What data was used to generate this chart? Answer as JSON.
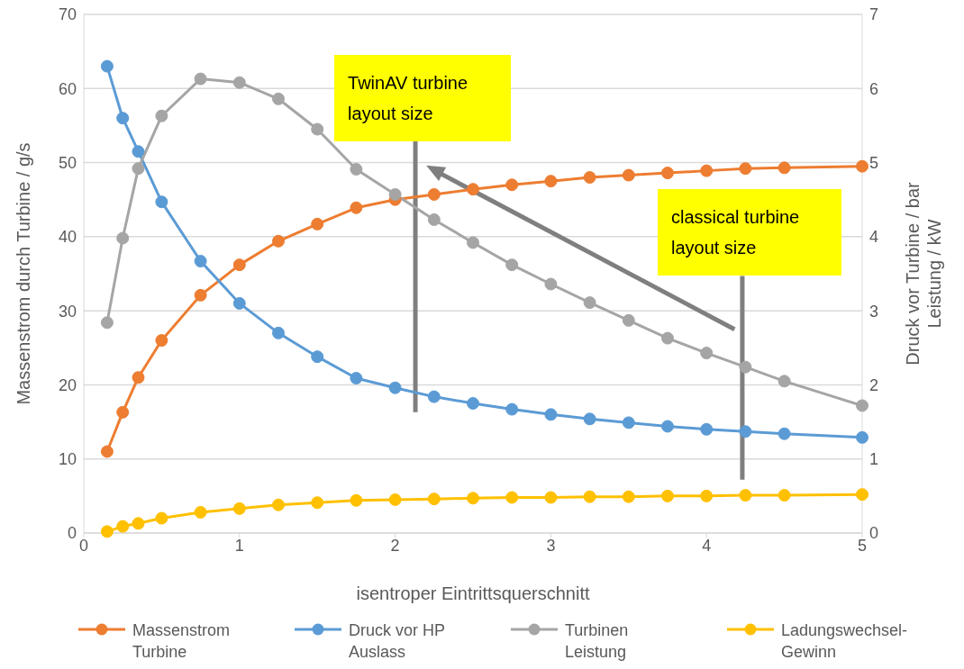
{
  "chart_data": {
    "type": "line",
    "xlabel": "isentroper Eintrittsquerschnitt",
    "ylabel": "Massenstrom durch Turbine / g/s",
    "y2label": "Druck vor Turbine / bar\nLeistung / kW",
    "x": [
      0.15,
      0.25,
      0.35,
      0.5,
      0.75,
      1,
      1.25,
      1.5,
      1.75,
      2,
      2.25,
      2.5,
      2.75,
      3,
      3.25,
      3.5,
      3.75,
      4,
      4.25,
      4.5,
      5
    ],
    "series": [
      {
        "name": "Massenstrom Turbine",
        "color": "#ed7d31",
        "values": [
          11,
          16.3,
          21,
          26,
          32.1,
          36.2,
          39.4,
          41.7,
          43.9,
          45,
          45.7,
          46.4,
          47,
          47.5,
          48,
          48.3,
          48.6,
          48.9,
          49.2,
          49.3,
          49.5
        ]
      },
      {
        "name": "Druck vor HP Auslass",
        "color": "#5b9bd5",
        "axis": "y2",
        "values": [
          6.3,
          5.6,
          5.15,
          4.47,
          3.67,
          3.1,
          2.7,
          2.38,
          2.09,
          1.96,
          1.84,
          1.75,
          1.67,
          1.6,
          1.54,
          1.49,
          1.44,
          1.4,
          1.37,
          1.34,
          1.29
        ]
      },
      {
        "name": "Turbinen Leistung",
        "color": "#a5a5a5",
        "axis": "y2",
        "values": [
          2.84,
          3.98,
          4.92,
          5.63,
          6.13,
          6.08,
          5.86,
          5.45,
          4.91,
          4.57,
          4.23,
          3.92,
          3.62,
          3.36,
          3.11,
          2.87,
          2.63,
          2.43,
          2.24,
          2.05,
          1.72
        ]
      },
      {
        "name": "Ladungswechsel-Gewinn",
        "color": "#ffc000",
        "values": [
          0.2,
          0.9,
          1.3,
          2,
          2.8,
          3.3,
          3.8,
          4.1,
          4.4,
          4.5,
          4.6,
          4.7,
          4.8,
          4.8,
          4.9,
          4.9,
          5,
          5,
          5.1,
          5.1,
          5.2
        ]
      }
    ],
    "xlim": [
      0,
      5
    ],
    "xticks": [
      0,
      1,
      2,
      3,
      4,
      5
    ],
    "ylim": [
      0,
      70
    ],
    "yticks": [
      0,
      10,
      20,
      30,
      40,
      50,
      60,
      70
    ],
    "y2lim": [
      0,
      7
    ],
    "y2ticks": [
      0,
      1,
      2,
      3,
      4,
      5,
      6,
      7
    ],
    "annotations": [
      "TwinAV turbine layout size",
      "classical turbine layout size"
    ],
    "grid": "y",
    "legend": "bottom",
    "marker": "circle",
    "line_style": "solid"
  }
}
